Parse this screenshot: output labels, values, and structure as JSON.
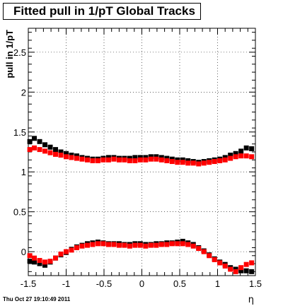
{
  "chart_data": {
    "type": "scatter",
    "title": "Fitted pull in 1/pT  Global Tracks",
    "xlabel": "η",
    "ylabel": "pull in 1/pT",
    "xlim": [
      -1.5,
      1.5
    ],
    "ylim": [
      -0.3,
      2.8
    ],
    "x_ticks": [
      "-1.5",
      "-1",
      "-0.5",
      "0",
      "0.5",
      "1",
      "1.5"
    ],
    "y_ticks": [
      "0",
      "0.5",
      "1",
      "1.5",
      "2",
      "2.5"
    ],
    "grid": true,
    "legend": "none",
    "series": [
      {
        "color": "#000000",
        "x": [
          -1.48,
          -1.42,
          -1.35,
          -1.28,
          -1.21,
          -1.14,
          -1.07,
          -1.0,
          -0.93,
          -0.86,
          -0.79,
          -0.72,
          -0.65,
          -0.58,
          -0.51,
          -0.44,
          -0.37,
          -0.3,
          -0.23,
          -0.16,
          -0.09,
          -0.02,
          0.05,
          0.12,
          0.19,
          0.26,
          0.33,
          0.4,
          0.47,
          0.54,
          0.61,
          0.68,
          0.75,
          0.82,
          0.89,
          0.96,
          1.03,
          1.1,
          1.17,
          1.24,
          1.31,
          1.38,
          1.45
        ],
        "y": [
          1.38,
          1.42,
          1.38,
          1.34,
          1.31,
          1.28,
          1.25,
          1.23,
          1.21,
          1.2,
          1.18,
          1.17,
          1.16,
          1.16,
          1.17,
          1.18,
          1.18,
          1.17,
          1.17,
          1.17,
          1.18,
          1.18,
          1.18,
          1.19,
          1.19,
          1.18,
          1.17,
          1.16,
          1.15,
          1.15,
          1.14,
          1.13,
          1.12,
          1.13,
          1.14,
          1.15,
          1.16,
          1.18,
          1.21,
          1.23,
          1.26,
          1.3,
          1.29
        ]
      },
      {
        "color": "#ff0000",
        "x": [
          -1.48,
          -1.42,
          -1.35,
          -1.28,
          -1.21,
          -1.14,
          -1.07,
          -1.0,
          -0.93,
          -0.86,
          -0.79,
          -0.72,
          -0.65,
          -0.58,
          -0.51,
          -0.44,
          -0.37,
          -0.3,
          -0.23,
          -0.16,
          -0.09,
          -0.02,
          0.05,
          0.12,
          0.19,
          0.26,
          0.33,
          0.4,
          0.47,
          0.54,
          0.61,
          0.68,
          0.75,
          0.82,
          0.89,
          0.96,
          1.03,
          1.1,
          1.17,
          1.24,
          1.31,
          1.38,
          1.45
        ],
        "y": [
          1.28,
          1.3,
          1.28,
          1.26,
          1.24,
          1.22,
          1.21,
          1.19,
          1.18,
          1.17,
          1.16,
          1.15,
          1.14,
          1.14,
          1.15,
          1.15,
          1.16,
          1.15,
          1.15,
          1.14,
          1.14,
          1.15,
          1.15,
          1.16,
          1.16,
          1.15,
          1.14,
          1.13,
          1.12,
          1.12,
          1.11,
          1.11,
          1.1,
          1.11,
          1.12,
          1.13,
          1.14,
          1.15,
          1.17,
          1.19,
          1.2,
          1.2,
          1.19
        ]
      },
      {
        "color": "#000000",
        "x": [
          -1.48,
          -1.42,
          -1.35,
          -1.28,
          -1.21,
          -1.14,
          -1.07,
          -1.0,
          -0.93,
          -0.86,
          -0.79,
          -0.72,
          -0.65,
          -0.58,
          -0.51,
          -0.44,
          -0.37,
          -0.3,
          -0.23,
          -0.16,
          -0.09,
          -0.02,
          0.05,
          0.12,
          0.19,
          0.26,
          0.33,
          0.4,
          0.47,
          0.54,
          0.61,
          0.68,
          0.75,
          0.82,
          0.89,
          0.96,
          1.03,
          1.1,
          1.17,
          1.24,
          1.31,
          1.38,
          1.45
        ],
        "y": [
          -0.12,
          -0.13,
          -0.15,
          -0.17,
          -0.13,
          -0.08,
          -0.04,
          -0.01,
          0.03,
          0.06,
          0.08,
          0.1,
          0.11,
          0.12,
          0.11,
          0.1,
          0.1,
          0.1,
          0.09,
          0.09,
          0.1,
          0.1,
          0.09,
          0.09,
          0.1,
          0.1,
          0.11,
          0.11,
          0.12,
          0.13,
          0.11,
          0.09,
          0.05,
          0.01,
          -0.04,
          -0.09,
          -0.13,
          -0.16,
          -0.2,
          -0.22,
          -0.24,
          -0.24,
          -0.25
        ]
      },
      {
        "color": "#ff0000",
        "x": [
          -1.48,
          -1.42,
          -1.35,
          -1.28,
          -1.21,
          -1.14,
          -1.07,
          -1.0,
          -0.93,
          -0.86,
          -0.79,
          -0.72,
          -0.65,
          -0.58,
          -0.51,
          -0.44,
          -0.37,
          -0.3,
          -0.23,
          -0.16,
          -0.09,
          -0.02,
          0.05,
          0.12,
          0.19,
          0.26,
          0.33,
          0.4,
          0.47,
          0.54,
          0.61,
          0.68,
          0.75,
          0.82,
          0.89,
          0.96,
          1.03,
          1.1,
          1.17,
          1.24,
          1.31,
          1.38,
          1.45
        ],
        "y": [
          -0.05,
          -0.08,
          -0.11,
          -0.13,
          -0.12,
          -0.08,
          -0.03,
          0.0,
          0.02,
          0.05,
          0.07,
          0.08,
          0.09,
          0.1,
          0.1,
          0.09,
          0.09,
          0.08,
          0.08,
          0.07,
          0.08,
          0.08,
          0.07,
          0.08,
          0.08,
          0.09,
          0.09,
          0.1,
          0.1,
          0.1,
          0.09,
          0.07,
          0.04,
          0.0,
          -0.05,
          -0.1,
          -0.14,
          -0.18,
          -0.22,
          -0.25,
          -0.2,
          -0.16,
          -0.14
        ]
      }
    ]
  },
  "footer": {
    "timestamp": "Thu Oct 27 19:10:49 2011"
  }
}
